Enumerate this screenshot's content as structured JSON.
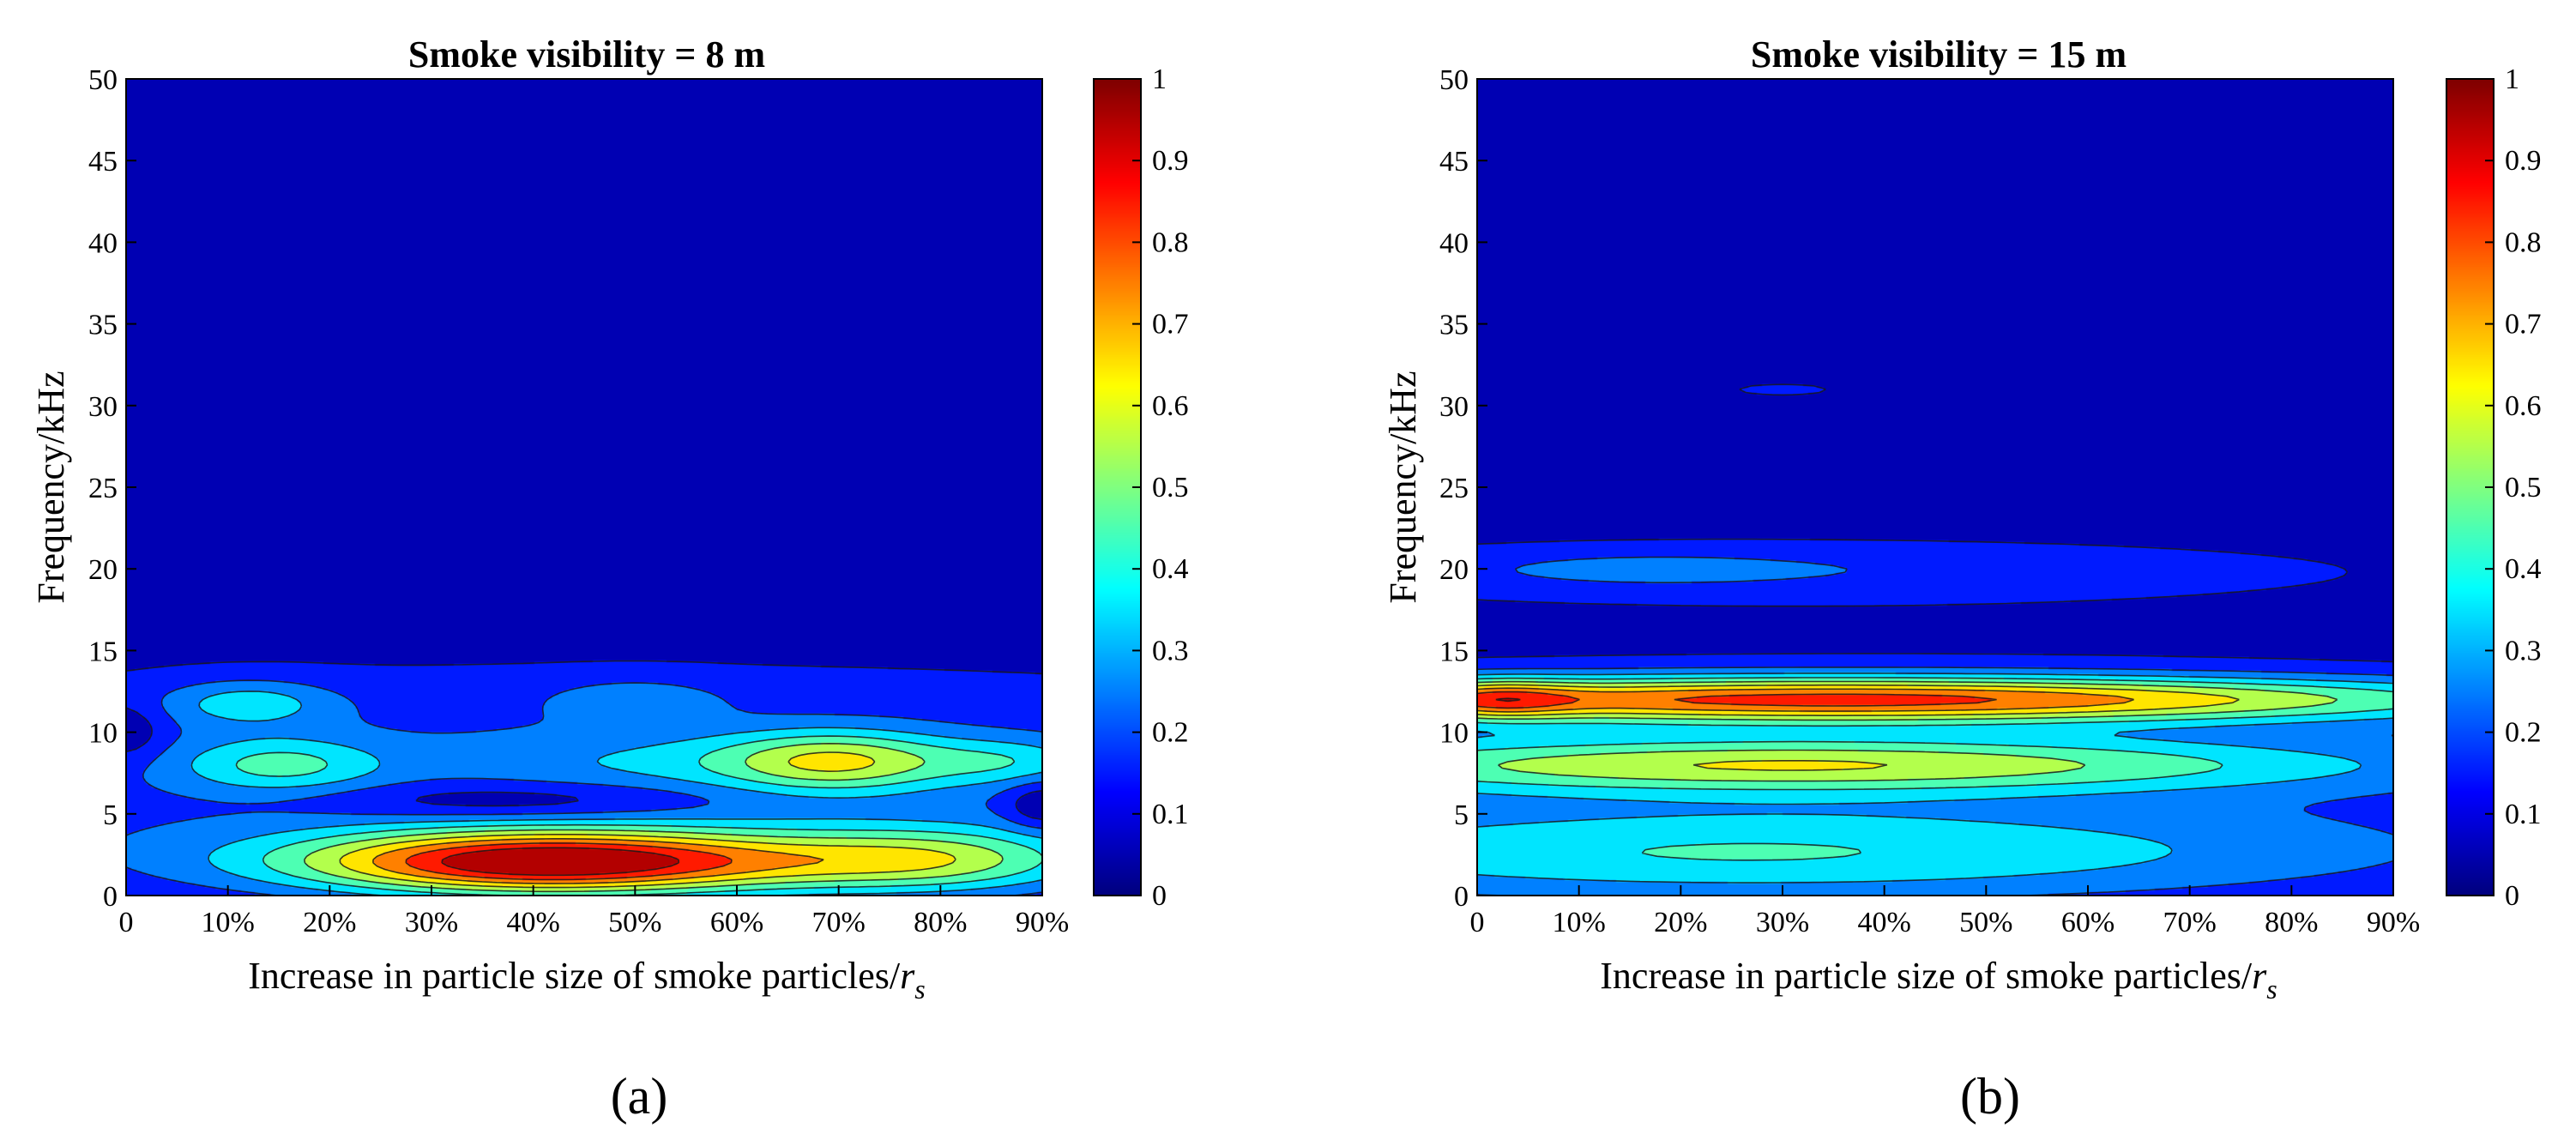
{
  "chart_data": [
    {
      "type": "heatmap",
      "subtype": "filled-contour",
      "panel_label": "(a)",
      "title": "Smoke visibility = 8 m",
      "xlabel": "Increase in particle size of smoke particles/",
      "xlabel_symbol": "r",
      "xlabel_subscript": "s",
      "ylabel": "Frequency/kHz",
      "x_ticks": [
        "0",
        "10%",
        "20%",
        "30%",
        "40%",
        "50%",
        "60%",
        "70%",
        "80%",
        "90%"
      ],
      "x_values": [
        0,
        10,
        20,
        30,
        40,
        50,
        60,
        70,
        80,
        90
      ],
      "xlim": [
        0,
        90
      ],
      "y_ticks": [
        "0",
        "5",
        "10",
        "15",
        "20",
        "25",
        "30",
        "35",
        "40",
        "45",
        "50"
      ],
      "ylim": [
        0,
        50
      ],
      "colorbar": {
        "range": [
          0,
          1
        ],
        "ticks": [
          "0",
          "0.1",
          "0.2",
          "0.3",
          "0.4",
          "0.5",
          "0.6",
          "0.7",
          "0.8",
          "0.9",
          "1"
        ],
        "colormap": "jet"
      },
      "features": [
        {
          "x": 0,
          "y": 50,
          "sx": 200,
          "sy": 20,
          "value": 0.0
        },
        {
          "x": 45,
          "y": 8.5,
          "sx": 90,
          "sy": 5.0,
          "value": 0.19
        },
        {
          "x": 45,
          "y": 2,
          "sx": 60,
          "sy": 2.5,
          "value": 0.12
        },
        {
          "x": 40,
          "y": 2.0,
          "sx": 16,
          "sy": 1.3,
          "value": 0.66
        },
        {
          "x": 50,
          "y": 2.2,
          "sx": 22,
          "sy": 1.6,
          "value": 0.2
        },
        {
          "x": 80,
          "y": 2.2,
          "sx": 10,
          "sy": 1.4,
          "value": 0.26
        },
        {
          "x": 70,
          "y": 2.0,
          "sx": 14,
          "sy": 1.2,
          "value": 0.1
        },
        {
          "x": 15,
          "y": 8.0,
          "sx": 7,
          "sy": 1.2,
          "value": 0.26
        },
        {
          "x": 12,
          "y": 11.8,
          "sx": 6,
          "sy": 1.0,
          "value": 0.22
        },
        {
          "x": 50,
          "y": 12.0,
          "sx": 6,
          "sy": 0.9,
          "value": 0.14
        },
        {
          "x": 70,
          "y": 8.2,
          "sx": 8,
          "sy": 1.3,
          "value": 0.38
        },
        {
          "x": 55,
          "y": 8.2,
          "sx": 15,
          "sy": 1.3,
          "value": 0.12
        },
        {
          "x": 87,
          "y": 8.2,
          "sx": 6,
          "sy": 1.0,
          "value": 0.18
        },
        {
          "x": 38,
          "y": 5.8,
          "sx": 14,
          "sy": 0.8,
          "value": -0.16
        },
        {
          "x": 90,
          "y": 5.5,
          "sx": 2.5,
          "sy": 1.0,
          "value": -0.18
        },
        {
          "x": 0,
          "y": 10,
          "sx": 2.5,
          "sy": 1.2,
          "value": -0.15
        },
        {
          "x": 80,
          "y": 20,
          "sx": 4,
          "sy": 0.3,
          "value": 0.08
        }
      ]
    },
    {
      "type": "heatmap",
      "subtype": "filled-contour",
      "panel_label": "(b)",
      "title": "Smoke visibility = 15 m",
      "xlabel": "Increase in particle size of smoke particles/",
      "xlabel_symbol": "r",
      "xlabel_subscript": "s",
      "ylabel": "Frequency/kHz",
      "x_ticks": [
        "0",
        "10%",
        "20%",
        "30%",
        "40%",
        "50%",
        "60%",
        "70%",
        "80%",
        "90%"
      ],
      "x_values": [
        0,
        10,
        20,
        30,
        40,
        50,
        60,
        70,
        80,
        90
      ],
      "xlim": [
        0,
        90
      ],
      "y_ticks": [
        "0",
        "5",
        "10",
        "15",
        "20",
        "25",
        "30",
        "35",
        "40",
        "45",
        "50"
      ],
      "ylim": [
        0,
        50
      ],
      "colorbar": {
        "range": [
          0,
          1
        ],
        "ticks": [
          "0",
          "0.1",
          "0.2",
          "0.3",
          "0.4",
          "0.5",
          "0.6",
          "0.7",
          "0.8",
          "0.9",
          "1"
        ],
        "colormap": "jet"
      },
      "features": [
        {
          "x": 40,
          "y": 7,
          "sx": 80,
          "sy": 7,
          "value": 0.16
        },
        {
          "x": 35,
          "y": 12,
          "sx": 45,
          "sy": 1.0,
          "value": 0.72
        },
        {
          "x": 2,
          "y": 12,
          "sx": 5,
          "sy": 0.8,
          "value": 0.24
        },
        {
          "x": 30,
          "y": 8,
          "sx": 40,
          "sy": 1.2,
          "value": 0.45
        },
        {
          "x": 25,
          "y": 2.5,
          "sx": 45,
          "sy": 2.0,
          "value": 0.28
        },
        {
          "x": 30,
          "y": 20,
          "sx": 45,
          "sy": 1.5,
          "value": 0.16
        },
        {
          "x": 15,
          "y": 20,
          "sx": 12,
          "sy": 0.8,
          "value": 0.06
        },
        {
          "x": 30,
          "y": 31,
          "sx": 45,
          "sy": 3.5,
          "value": 0.1
        },
        {
          "x": 30,
          "y": 47,
          "sx": 35,
          "sy": 2.5,
          "value": 0.08
        },
        {
          "x": 20,
          "y": 24,
          "sx": 10,
          "sy": 0.7,
          "value": 0.06
        }
      ]
    }
  ]
}
